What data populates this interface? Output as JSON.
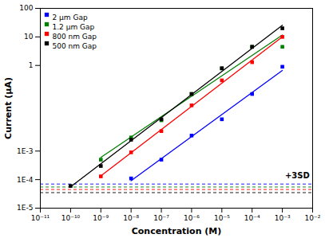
{
  "chart_data": {
    "type": "scatter",
    "xlabel": "Concentration (M)",
    "ylabel": "Current (μA)",
    "log": true,
    "legend": "upper left",
    "xlim": [
      1e-11,
      0.01
    ],
    "ylim": [
      1e-05,
      100
    ],
    "xticks": [
      {
        "value": 1e-11,
        "label": "10⁻¹¹"
      },
      {
        "value": 1e-10,
        "label": "10⁻¹⁰"
      },
      {
        "value": 1e-09,
        "label": "10⁻⁹"
      },
      {
        "value": 1e-08,
        "label": "10⁻⁸"
      },
      {
        "value": 1e-07,
        "label": "10⁻⁷"
      },
      {
        "value": 1e-06,
        "label": "10⁻⁶"
      },
      {
        "value": 1e-05,
        "label": "10⁻⁵"
      },
      {
        "value": 0.0001,
        "label": "10⁻⁴"
      },
      {
        "value": 0.001,
        "label": "10⁻³"
      },
      {
        "value": 0.01,
        "label": "10⁻²"
      }
    ],
    "yticks": [
      {
        "value": 1e-05,
        "label": "1E-5"
      },
      {
        "value": 0.0001,
        "label": "1E-4"
      },
      {
        "value": 0.001,
        "label": "1E-3"
      },
      1,
      10,
      100
    ],
    "series": [
      {
        "name": "2 μm Gap",
        "color": "blue",
        "marker": "square",
        "x": [
          1e-08,
          1e-07,
          1e-06,
          1e-05,
          0.0001,
          0.001
        ],
        "values": [
          0.00011,
          0.0005,
          0.0035,
          0.013,
          0.1,
          0.9
        ],
        "fit": {
          "x": [
            1e-08,
            0.001
          ],
          "y": [
            9.138e-05,
            0.6658
          ]
        }
      },
      {
        "name": "1.2 μm Gap",
        "color": "green",
        "marker": "square",
        "x": [
          1e-09,
          1e-08,
          1e-07,
          1e-06,
          1e-05,
          0.0001,
          0.001
        ],
        "values": [
          0.0005,
          0.003,
          0.012,
          0.1,
          0.78,
          4.5,
          4.5
        ],
        "fit": {
          "x": [
            1e-09,
            0.001
          ],
          "y": [
            0.0005972,
            11.69
          ]
        }
      },
      {
        "name": "800 nm Gap",
        "color": "red",
        "marker": "square",
        "x": [
          1e-09,
          1e-08,
          1e-07,
          1e-06,
          1e-05,
          0.0001,
          0.001
        ],
        "values": [
          0.00013,
          0.0009,
          0.005,
          0.04,
          0.3,
          1.3,
          10
        ],
        "fit": {
          "x": [
            1e-09,
            0.001
          ],
          "y": [
            0.00013417,
            10.089
          ]
        }
      },
      {
        "name": "500 nm Gap",
        "color": "black",
        "marker": "square",
        "x": [
          1e-10,
          1e-09,
          1e-08,
          1e-07,
          1e-06,
          1e-05,
          0.0001,
          0.001
        ],
        "values": [
          6e-05,
          0.0003,
          0.0025,
          0.013,
          0.1,
          0.8,
          4.5,
          20
        ],
        "fit": {
          "x": [
            1e-10,
            0.001
          ],
          "y": [
            5.586e-05,
            25.644
          ]
        }
      }
    ],
    "hlines": [
      {
        "y": 7e-05,
        "color": "blue"
      },
      {
        "y": 5.5e-05,
        "color": "green"
      },
      {
        "y": 4.5e-05,
        "color": "red"
      },
      {
        "y": 3.5e-05,
        "color": "black"
      }
    ],
    "annotations": [
      {
        "text": "+3SD",
        "x": 0.008,
        "y": 0.00014
      }
    ]
  }
}
